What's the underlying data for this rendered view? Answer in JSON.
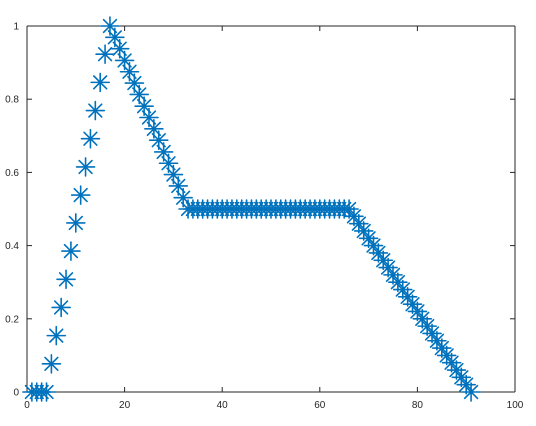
{
  "chart_data": {
    "type": "scatter",
    "marker": "asterisk",
    "color": "#0072BD",
    "xlim": [
      0,
      100
    ],
    "ylim": [
      0,
      1
    ],
    "xticks": [
      0,
      20,
      40,
      60,
      80,
      100
    ],
    "yticks": [
      0,
      0.2,
      0.4,
      0.6,
      0.8,
      1
    ],
    "xtick_labels": [
      "0",
      "20",
      "40",
      "60",
      "80",
      "100"
    ],
    "ytick_labels": [
      "0",
      "0.2",
      "0.4",
      "0.6",
      "0.8",
      "1"
    ],
    "grid": false,
    "title": "",
    "xlabel": "",
    "ylabel": "",
    "series": [
      {
        "x": [
          1,
          2,
          3,
          4,
          5,
          6,
          7,
          8,
          9,
          10,
          11,
          12,
          13,
          14,
          15,
          16,
          17,
          18,
          19,
          20,
          21,
          22,
          23,
          24,
          25,
          26,
          27,
          28,
          29,
          30,
          31,
          32,
          33,
          34,
          35,
          36,
          37,
          38,
          39,
          40,
          41,
          42,
          43,
          44,
          45,
          46,
          47,
          48,
          49,
          50,
          51,
          52,
          53,
          54,
          55,
          56,
          57,
          58,
          59,
          60,
          61,
          62,
          63,
          64,
          65,
          66,
          67,
          68,
          69,
          70,
          71,
          72,
          73,
          74,
          75,
          76,
          77,
          78,
          79,
          80,
          81,
          82,
          83,
          84,
          85,
          86,
          87,
          88,
          89,
          90,
          91
        ],
        "y": [
          0,
          0,
          0,
          0,
          0.077,
          0.154,
          0.231,
          0.308,
          0.385,
          0.462,
          0.538,
          0.615,
          0.692,
          0.769,
          0.846,
          0.923,
          1,
          0.969,
          0.938,
          0.906,
          0.875,
          0.844,
          0.813,
          0.781,
          0.75,
          0.719,
          0.688,
          0.656,
          0.625,
          0.594,
          0.563,
          0.531,
          0.5,
          0.5,
          0.5,
          0.5,
          0.5,
          0.5,
          0.5,
          0.5,
          0.5,
          0.5,
          0.5,
          0.5,
          0.5,
          0.5,
          0.5,
          0.5,
          0.5,
          0.5,
          0.5,
          0.5,
          0.5,
          0.5,
          0.5,
          0.5,
          0.5,
          0.5,
          0.5,
          0.5,
          0.5,
          0.5,
          0.5,
          0.5,
          0.5,
          0.5,
          0.48,
          0.46,
          0.44,
          0.42,
          0.4,
          0.38,
          0.36,
          0.34,
          0.32,
          0.3,
          0.28,
          0.26,
          0.24,
          0.22,
          0.2,
          0.18,
          0.16,
          0.14,
          0.12,
          0.1,
          0.08,
          0.06,
          0.04,
          0.02,
          0
        ]
      }
    ]
  }
}
